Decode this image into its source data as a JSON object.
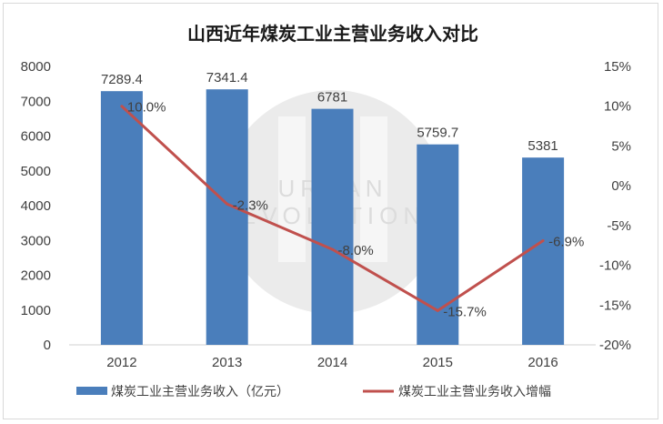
{
  "chart_data": {
    "type": "bar+line",
    "title": "山西近年煤炭工业主营业务收入对比",
    "categories": [
      "2012",
      "2013",
      "2014",
      "2015",
      "2016"
    ],
    "series": [
      {
        "name": "煤炭工业主营业务收入（亿元）",
        "type": "bar",
        "axis": "left",
        "values": [
          7289.4,
          7341.4,
          6781,
          5759.7,
          5381
        ],
        "labels": [
          "7289.4",
          "7341.4",
          "6781",
          "5759.7",
          "5381"
        ],
        "color": "#4a7ebb"
      },
      {
        "name": "煤炭工业主营业务收入增幅",
        "type": "line",
        "axis": "right",
        "values": [
          10.0,
          -2.3,
          -8.0,
          -15.7,
          -6.9
        ],
        "labels": [
          "10.0%",
          "-2.3%",
          "-8.0%",
          "-15.7%",
          "-6.9%"
        ],
        "color": "#c0504d"
      }
    ],
    "y_left": {
      "min": 0,
      "max": 8000,
      "step": 1000,
      "ticks": [
        "0",
        "1000",
        "2000",
        "3000",
        "4000",
        "5000",
        "6000",
        "7000",
        "8000"
      ]
    },
    "y_right": {
      "min": -20,
      "max": 15,
      "step": 5,
      "ticks": [
        "-20%",
        "-15%",
        "-10%",
        "-5%",
        "0%",
        "5%",
        "10%",
        "15%"
      ]
    },
    "grid": false,
    "legend_position": "bottom",
    "watermark": {
      "text_line1": "URBAN",
      "text_line2": "EVOLUTION"
    }
  }
}
